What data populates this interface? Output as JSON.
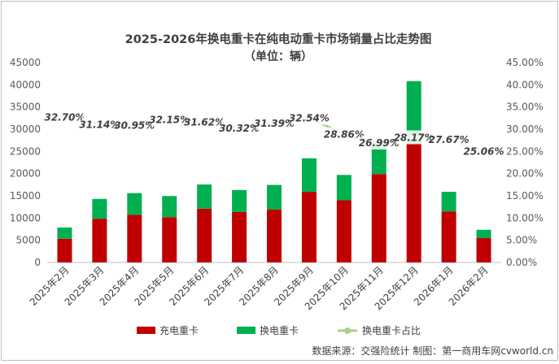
{
  "chart_data": {
    "type": "bar",
    "subtype": "stacked-bar-with-line",
    "title": "2025-2026年换电重卡在纯电动重卡市场销量占比走势图",
    "subtitle": "（单位：辆）",
    "categories": [
      "2025年2月",
      "2025年3月",
      "2025年4月",
      "2025年5月",
      "2025年6月",
      "2025年7月",
      "2025年8月",
      "2025年9月",
      "2025年10月",
      "2025年11月",
      "2025年12月",
      "2026年1月",
      "2026年2月"
    ],
    "series": [
      {
        "name": "充电重卡",
        "kind": "bar",
        "color": "#c00000",
        "values": [
          5350,
          9850,
          10750,
          10200,
          12100,
          11350,
          11950,
          15900,
          14000,
          19900,
          26800,
          11500,
          5500
        ]
      },
      {
        "name": "换电重卡",
        "kind": "bar",
        "color": "#00b050",
        "values": [
          2500,
          4450,
          4850,
          4750,
          5450,
          4950,
          5500,
          7550,
          5700,
          7300,
          14000,
          4400,
          1850
        ]
      },
      {
        "name": "换电重卡占比",
        "kind": "line",
        "axis": "right",
        "color": "#a9d18e",
        "values": [
          32.7,
          31.14,
          30.95,
          32.15,
          31.62,
          30.32,
          31.39,
          32.54,
          28.86,
          26.99,
          28.17,
          27.67,
          25.06
        ],
        "labels": [
          "32.70%",
          "31.14%",
          "30.95%",
          "32.15%",
          "31.62%",
          "30.32%",
          "31.39%",
          "32.54%",
          "28.86%",
          "26.99%",
          "28.17%",
          "27.67%",
          "25.06%"
        ]
      }
    ],
    "ylim": [
      0,
      45000
    ],
    "y_ticks": [
      "0",
      "5000",
      "10000",
      "15000",
      "20000",
      "25000",
      "30000",
      "35000",
      "40000",
      "45000"
    ],
    "y2lim": [
      0,
      45
    ],
    "y2_ticks": [
      "0.00%",
      "5.00%",
      "10.00%",
      "15.00%",
      "20.00%",
      "25.00%",
      "30.00%",
      "35.00%",
      "40.00%",
      "45.00%"
    ],
    "grid": false,
    "legend_position": "bottom",
    "legend": [
      "充电重卡",
      "换电重卡",
      "换电重卡占比"
    ],
    "source_note": "数据来源：交强险统计 制图：第一商用车网cvworld.cn"
  }
}
